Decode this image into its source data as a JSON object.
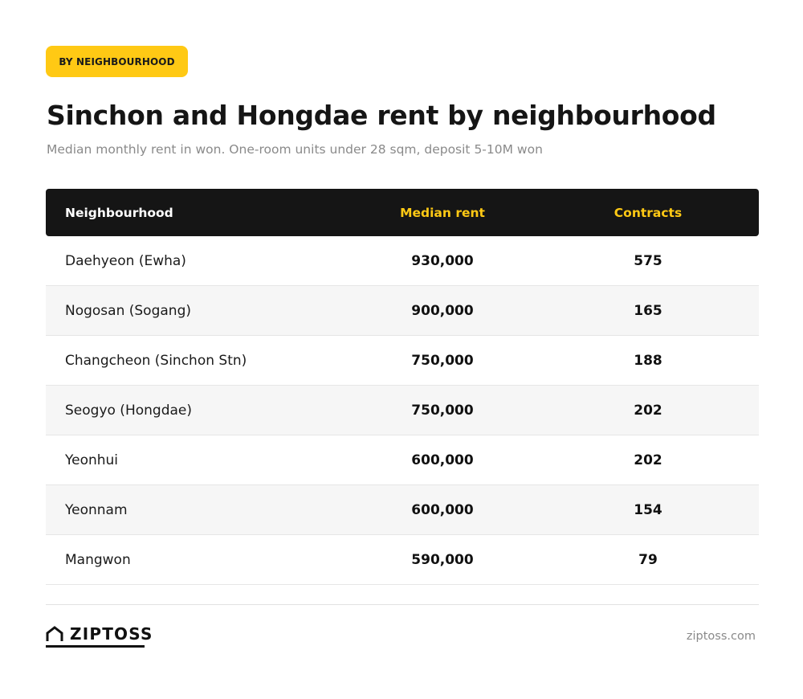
{
  "badge": "BY NEIGHBOURHOOD",
  "title": "Sinchon and Hongdae rent by neighbourhood",
  "subtitle": "Median monthly rent in won. One-room units under 28 sqm, deposit 5-10M won",
  "table": {
    "headers": {
      "name": "Neighbourhood",
      "rent": "Median rent",
      "contracts": "Contracts"
    },
    "rows": [
      {
        "name": "Daehyeon (Ewha)",
        "rent": "930,000",
        "contracts": "575"
      },
      {
        "name": "Nogosan (Sogang)",
        "rent": "900,000",
        "contracts": "165"
      },
      {
        "name": "Changcheon (Sinchon Stn)",
        "rent": "750,000",
        "contracts": "188"
      },
      {
        "name": "Seogyo (Hongdae)",
        "rent": "750,000",
        "contracts": "202"
      },
      {
        "name": "Yeonhui",
        "rent": "600,000",
        "contracts": "202"
      },
      {
        "name": "Yeonnam",
        "rent": "600,000",
        "contracts": "154"
      },
      {
        "name": "Mangwon",
        "rent": "590,000",
        "contracts": "79"
      }
    ]
  },
  "footer": {
    "logo_text": "ZIPTOSS",
    "logo_icon": "house-icon",
    "site": "ziptoss.com"
  },
  "colors": {
    "accent": "#FFC914",
    "header_bg": "#151515"
  }
}
